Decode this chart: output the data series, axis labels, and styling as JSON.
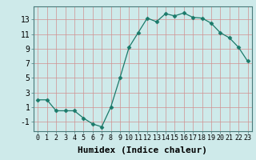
{
  "x": [
    0,
    1,
    2,
    3,
    4,
    5,
    6,
    7,
    8,
    9,
    10,
    11,
    12,
    13,
    14,
    15,
    16,
    17,
    18,
    19,
    20,
    21,
    22,
    23
  ],
  "y": [
    2,
    2,
    0.5,
    0.5,
    0.5,
    -0.5,
    -1.3,
    -1.7,
    1,
    5,
    9.2,
    11.2,
    13.2,
    12.7,
    13.8,
    13.5,
    13.9,
    13.3,
    13.2,
    12.5,
    11.2,
    10.5,
    9.2,
    7.3
  ],
  "line_color": "#1a7a6a",
  "marker": "D",
  "marker_size": 2.5,
  "bg_color": "#ceeaea",
  "grid_color": "#d09090",
  "xlabel": "Humidex (Indice chaleur)",
  "xlabel_weight": "bold",
  "xlabel_fontsize": 8,
  "xtick_fontsize": 6,
  "ytick_fontsize": 7,
  "ytick_labels": [
    "-1",
    "1",
    "3",
    "5",
    "7",
    "9",
    "11",
    "13"
  ],
  "ytick_values": [
    -1,
    1,
    3,
    5,
    7,
    9,
    11,
    13
  ],
  "ylim": [
    -2.3,
    14.8
  ],
  "xlim": [
    -0.5,
    23.5
  ],
  "xtick_values": [
    0,
    1,
    2,
    3,
    4,
    5,
    6,
    7,
    8,
    9,
    10,
    11,
    12,
    13,
    14,
    15,
    16,
    17,
    18,
    19,
    20,
    21,
    22,
    23
  ]
}
